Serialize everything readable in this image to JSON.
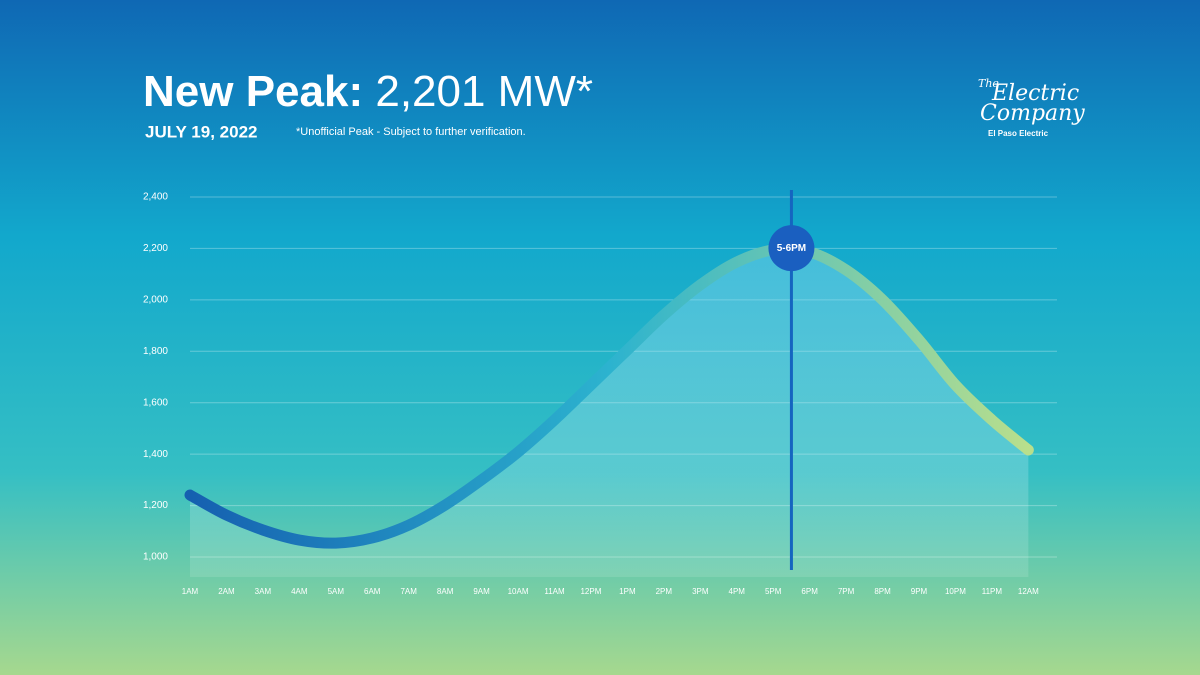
{
  "chart_data": {
    "type": "line",
    "title": {
      "bold": "New Peak:",
      "rest": "2,201 MW*"
    },
    "date": "JULY 19, 2022",
    "note": "*Unofficial Peak - Subject to further verification.",
    "logo": {
      "the": "The",
      "line1": "Electric",
      "line2": "Company",
      "caption": "El Paso Electric"
    },
    "categories": [
      "1AM",
      "2AM",
      "3AM",
      "4AM",
      "5AM",
      "6AM",
      "7AM",
      "8AM",
      "9AM",
      "10AM",
      "11AM",
      "12PM",
      "1PM",
      "2PM",
      "3PM",
      "4PM",
      "5PM",
      "6PM",
      "7PM",
      "8PM",
      "9PM",
      "10PM",
      "11PM",
      "12AM"
    ],
    "values": [
      1241,
      1163,
      1105,
      1066,
      1054,
      1074,
      1124,
      1202,
      1300,
      1408,
      1533,
      1669,
      1805,
      1941,
      2058,
      2147,
      2194,
      2186,
      2116,
      2000,
      1844,
      1669,
      1533,
      1416
    ],
    "peak": {
      "label": "5-6PM",
      "value": 2201
    },
    "line_colors": [
      "#1560b0",
      "#2cb3cf",
      "#b9df8c"
    ],
    "ylim": [
      1000,
      2400
    ],
    "yticks": [
      {
        "value": 1000,
        "label": "1,000"
      },
      {
        "value": 1200,
        "label": "1,200"
      },
      {
        "value": 1400,
        "label": "1,400"
      },
      {
        "value": 1600,
        "label": "1,600"
      },
      {
        "value": 1800,
        "label": "1,800"
      },
      {
        "value": 2000,
        "label": "2,000"
      },
      {
        "value": 2200,
        "label": "2,200"
      },
      {
        "value": 2400,
        "label": "2,400"
      }
    ],
    "grid": true
  }
}
